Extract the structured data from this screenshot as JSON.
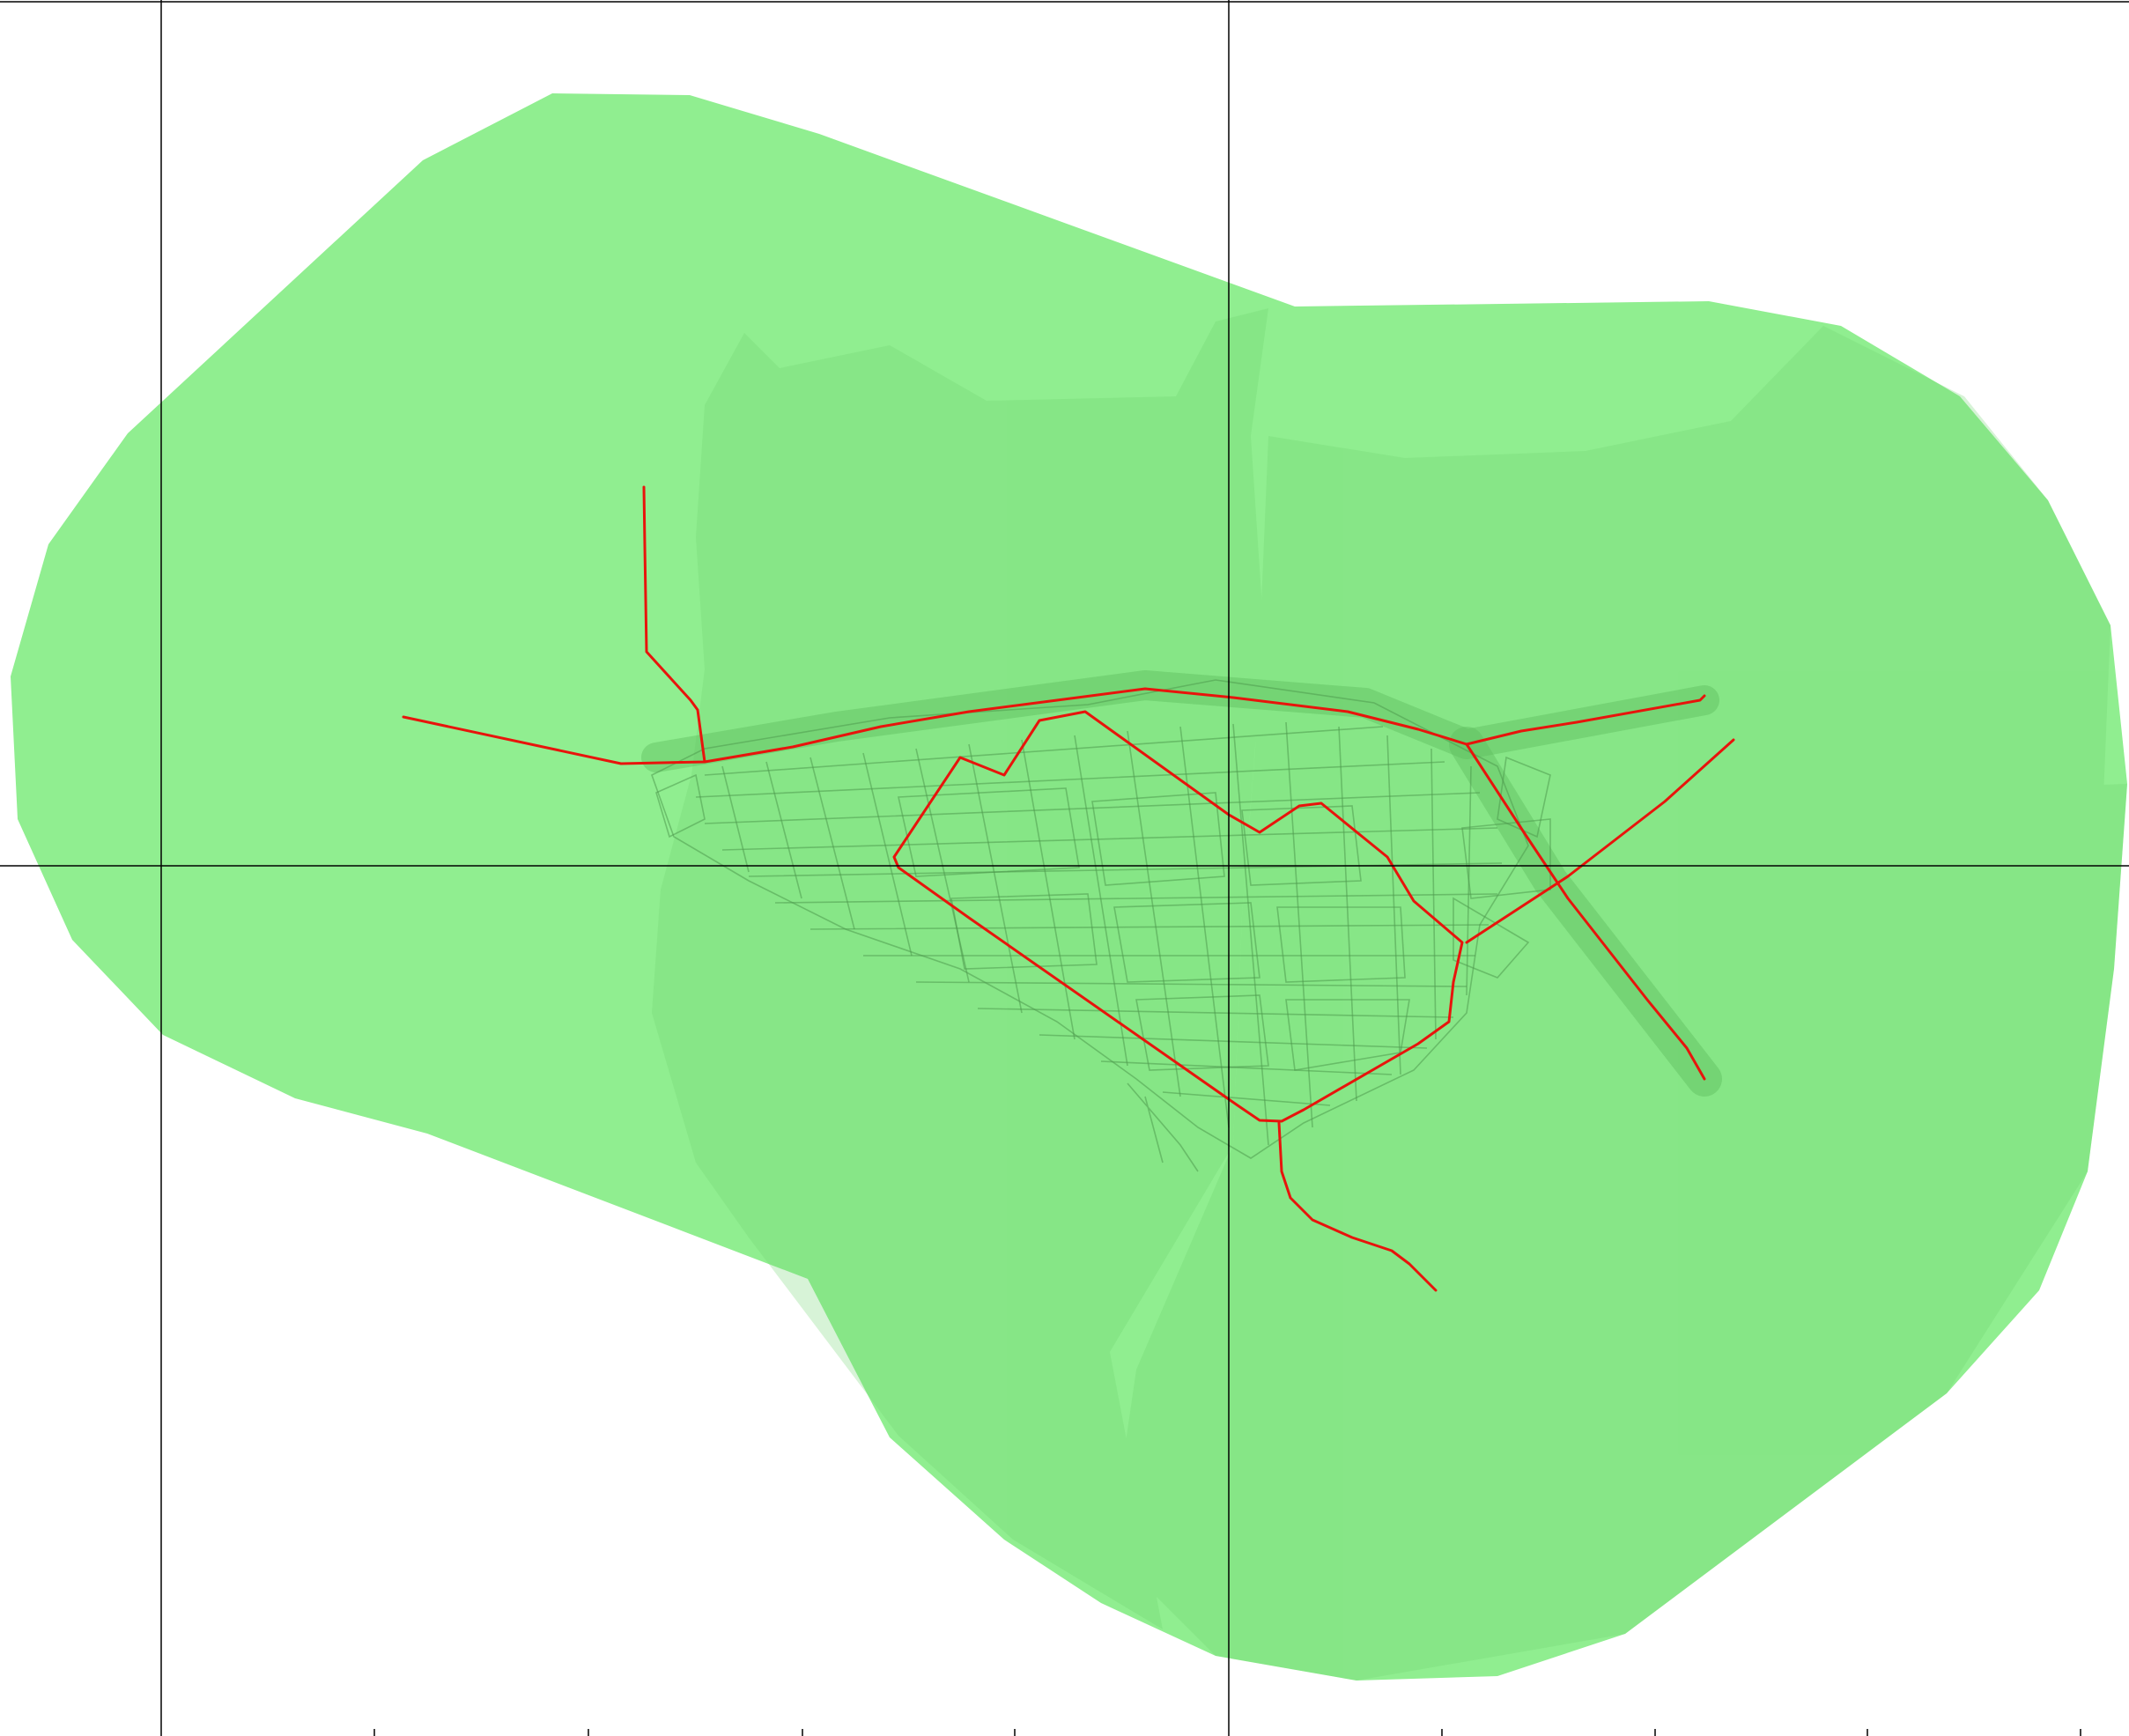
{
  "map": {
    "colors": {
      "background": "#ffffff",
      "coverage": "#90ee90",
      "coverage_zone": "#6fd46f",
      "street_network": "#4e9a4e",
      "route": "#e8140c",
      "grid": "#000000"
    },
    "layers": [
      "service-coverage-area",
      "coverage-zones",
      "street-network",
      "route-lines",
      "reference-grid"
    ],
    "routes": [
      "west-branch",
      "north-spur",
      "central-loop",
      "east-branch",
      "southeast-diagonal",
      "northeast-diagonal",
      "south-spur"
    ],
    "reference_grid": {
      "vertical_lines": 2,
      "horizontal_lines": 1,
      "bottom_ticks": 10,
      "tick_labels_visible": false
    }
  }
}
